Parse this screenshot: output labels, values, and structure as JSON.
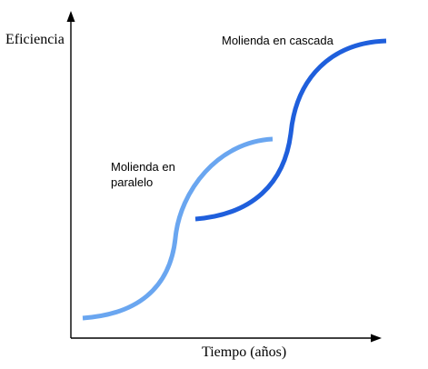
{
  "axes": {
    "y_label": "Eficiencia",
    "x_label": "Tiempo (años)"
  },
  "curves": {
    "parallel": {
      "label_line1": "Molienda  en",
      "label_line2": "paralelo",
      "color": "#6aa6f0"
    },
    "cascade": {
      "label": "Molienda en cascada",
      "color": "#1f5fdc"
    }
  }
}
